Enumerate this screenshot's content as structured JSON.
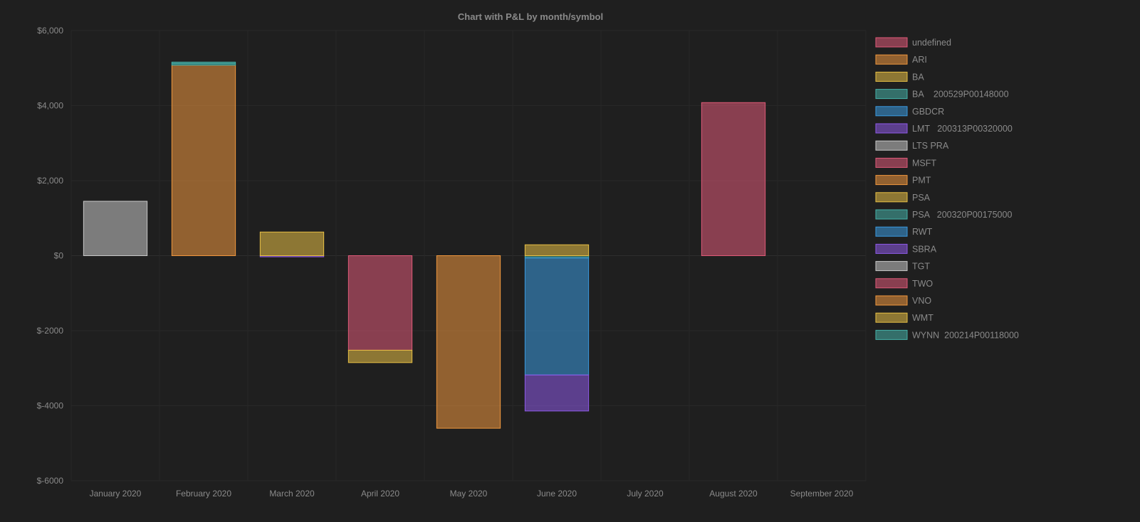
{
  "chart_data": {
    "type": "bar",
    "stacked": true,
    "title": "Chart with P&L by month/symbol",
    "categories": [
      "January 2020",
      "February 2020",
      "March 2020",
      "April 2020",
      "May 2020",
      "June 2020",
      "July 2020",
      "August 2020",
      "September 2020"
    ],
    "ylim": [
      -6000,
      6000
    ],
    "y_ticks": [
      6000,
      4000,
      2000,
      0,
      -2000,
      -4000,
      -6000
    ],
    "y_tick_labels": [
      "$6,000",
      "$4,000",
      "$2,000",
      "$0",
      "$-2000",
      "$-4000",
      "$-6000"
    ],
    "grid": true,
    "legend_position": "right",
    "series": [
      {
        "name": "undefined",
        "color": "#e05a78",
        "values": [
          0,
          0,
          0,
          0,
          0,
          0,
          0,
          0,
          0
        ]
      },
      {
        "name": "ARI",
        "color": "#f0973e",
        "values": [
          0,
          5080,
          0,
          0,
          0,
          0,
          0,
          0,
          0
        ]
      },
      {
        "name": "BA",
        "color": "#e8c045",
        "values": [
          0,
          0,
          0,
          0,
          0,
          0,
          0,
          0,
          0
        ]
      },
      {
        "name": "BA    200529P00148000",
        "color": "#45b1a8",
        "values": [
          0,
          0,
          0,
          0,
          0,
          -60,
          0,
          0,
          0
        ]
      },
      {
        "name": "GBDCR",
        "color": "#3a9ae0",
        "values": [
          0,
          0,
          0,
          0,
          0,
          -3120,
          0,
          0,
          0
        ]
      },
      {
        "name": "LMT   200313P00320000",
        "color": "#8e5ae8",
        "values": [
          0,
          0,
          -30,
          0,
          0,
          0,
          0,
          0,
          0
        ]
      },
      {
        "name": "LTS PRA",
        "color": "#c8c8c8",
        "values": [
          0,
          0,
          0,
          0,
          0,
          0,
          0,
          0,
          0
        ]
      },
      {
        "name": "MSFT",
        "color": "#e05a78",
        "values": [
          0,
          0,
          0,
          0,
          0,
          0,
          0,
          0,
          0
        ]
      },
      {
        "name": "PMT",
        "color": "#f0973e",
        "values": [
          0,
          0,
          0,
          0,
          -4600,
          0,
          0,
          0,
          0
        ]
      },
      {
        "name": "PSA",
        "color": "#e8c045",
        "values": [
          0,
          0,
          630,
          0,
          0,
          290,
          0,
          0,
          0
        ]
      },
      {
        "name": "PSA   200320P00175000",
        "color": "#45b1a8",
        "values": [
          0,
          40,
          0,
          0,
          0,
          0,
          0,
          0,
          0
        ]
      },
      {
        "name": "RWT",
        "color": "#3a9ae0",
        "values": [
          0,
          0,
          0,
          0,
          0,
          0,
          0,
          0,
          0
        ]
      },
      {
        "name": "SBRA",
        "color": "#8e5ae8",
        "values": [
          0,
          0,
          0,
          0,
          0,
          -960,
          0,
          0,
          0
        ]
      },
      {
        "name": "TGT",
        "color": "#c8c8c8",
        "values": [
          1450,
          0,
          0,
          0,
          0,
          0,
          0,
          0,
          0
        ]
      },
      {
        "name": "TWO",
        "color": "#e05a78",
        "values": [
          0,
          0,
          0,
          -2520,
          0,
          0,
          0,
          4080,
          0
        ]
      },
      {
        "name": "VNO",
        "color": "#f0973e",
        "values": [
          0,
          0,
          0,
          0,
          0,
          0,
          0,
          0,
          0
        ]
      },
      {
        "name": "WMT",
        "color": "#e8c045",
        "values": [
          0,
          0,
          0,
          -330,
          0,
          0,
          0,
          0,
          0
        ]
      },
      {
        "name": "WYNN  200214P00118000",
        "color": "#45b1a8",
        "values": [
          0,
          40,
          0,
          0,
          0,
          0,
          0,
          0,
          0
        ]
      }
    ]
  }
}
